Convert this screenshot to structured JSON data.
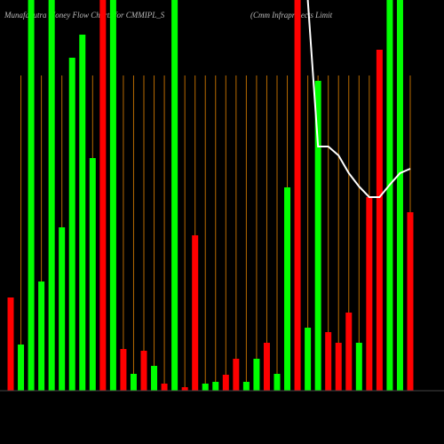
{
  "chart_data": {
    "type": "bar",
    "title": "MunafaSutra Money Flow Charts for CMMIPL_S",
    "subtitle": "(Cmm Infraprojects Limit",
    "ylim": [
      0,
      440
    ],
    "values": [
      105,
      52,
      440,
      123,
      440,
      184,
      375,
      401,
      262,
      440,
      440,
      47,
      19,
      45,
      28,
      8,
      440,
      4,
      175,
      8,
      10,
      18,
      36,
      10,
      36,
      54,
      19,
      229,
      440,
      71,
      349,
      66,
      54,
      88,
      54,
      218,
      384,
      440,
      440,
      201
    ],
    "colors": [
      "#ff0000",
      "#00ff00",
      "#00ff00",
      "#00ff00",
      "#00ff00",
      "#00ff00",
      "#00ff00",
      "#00ff00",
      "#00ff00",
      "#ff0000",
      "#00ff00",
      "#ff0000",
      "#00ff00",
      "#ff0000",
      "#00ff00",
      "#ff0000",
      "#00ff00",
      "#ff0000",
      "#ff0000",
      "#00ff00",
      "#00ff00",
      "#ff0000",
      "#ff0000",
      "#00ff00",
      "#00ff00",
      "#ff0000",
      "#00ff00",
      "#00ff00",
      "#ff0000",
      "#00ff00",
      "#00ff00",
      "#ff0000",
      "#ff0000",
      "#ff0000",
      "#00ff00",
      "#ff0000",
      "#ff0000",
      "#00ff00",
      "#00ff00",
      "#ff0000"
    ],
    "line": {
      "color": "#ffffff",
      "values": [
        null,
        null,
        null,
        null,
        null,
        null,
        null,
        null,
        null,
        null,
        null,
        null,
        null,
        null,
        null,
        null,
        null,
        null,
        null,
        null,
        null,
        null,
        null,
        null,
        null,
        null,
        null,
        null,
        null,
        440,
        275,
        275,
        265,
        245,
        230,
        218,
        218,
        232,
        245,
        250
      ]
    }
  }
}
